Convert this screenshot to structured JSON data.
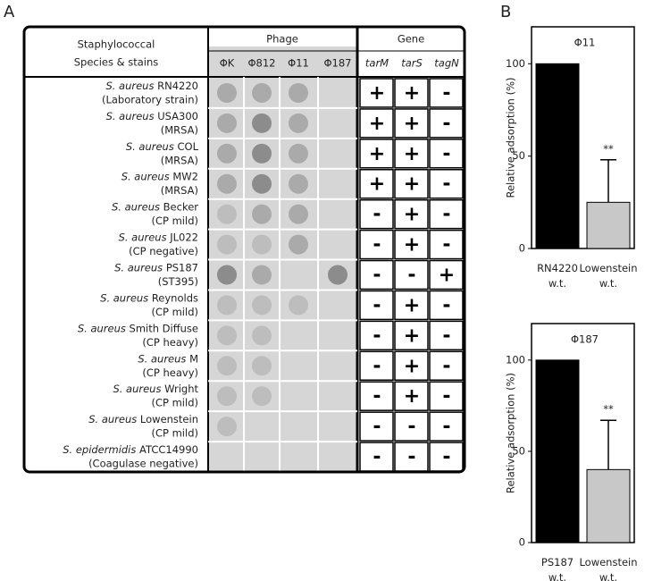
{
  "panel_a": {
    "label": "A",
    "header": {
      "strain_column": [
        "Staphylococcal",
        "Species & stains"
      ],
      "phage_group": "Phage",
      "phages": [
        "ΦK",
        "Φ812",
        "Φ11",
        "Φ187"
      ],
      "gene_group": "Gene",
      "genes": [
        "tarM",
        "tarS",
        "tagN"
      ]
    },
    "rows": [
      {
        "species": "S. aureus",
        "strain": "RN4220",
        "note": "(Laboratory strain)",
        "genes": [
          "+",
          "+",
          "-"
        ]
      },
      {
        "species": "S. aureus",
        "strain": "USA300",
        "note": "(MRSA)",
        "genes": [
          "+",
          "+",
          "-"
        ]
      },
      {
        "species": "S. aureus",
        "strain": "COL",
        "note": "(MRSA)",
        "genes": [
          "+",
          "+",
          "-"
        ]
      },
      {
        "species": "S. aureus",
        "strain": "MW2",
        "note": "(MRSA)",
        "genes": [
          "+",
          "+",
          "-"
        ]
      },
      {
        "species": "S. aureus",
        "strain": "Becker",
        "note": "(CP mild)",
        "genes": [
          "-",
          "+",
          "-"
        ]
      },
      {
        "species": "S. aureus",
        "strain": "JL022",
        "note": "(CP negative)",
        "genes": [
          "-",
          "+",
          "-"
        ]
      },
      {
        "species": "S. aureus",
        "strain": "PS187",
        "note": "(ST395)",
        "genes": [
          "-",
          "-",
          "+"
        ]
      },
      {
        "species": "S. aureus",
        "strain": "Reynolds",
        "note": "(CP mild)",
        "genes": [
          "-",
          "+",
          "-"
        ]
      },
      {
        "species": "S. aureus",
        "strain": "Smith Diffuse",
        "note": "(CP heavy)",
        "genes": [
          "-",
          "+",
          "-"
        ]
      },
      {
        "species": "S. aureus",
        "strain": "M",
        "note": "(CP heavy)",
        "genes": [
          "-",
          "+",
          "-"
        ]
      },
      {
        "species": "S. aureus",
        "strain": "Wright",
        "note": "(CP mild)",
        "genes": [
          "-",
          "+",
          "-"
        ]
      },
      {
        "species": "S. aureus",
        "strain": "Lowenstein",
        "note": "(CP mild)",
        "genes": [
          "-",
          "-",
          "-"
        ]
      },
      {
        "species": "S. epidermidis",
        "strain": "ATCC14990",
        "note": "(Coagulase negative)",
        "genes": [
          "-",
          "-",
          "-"
        ]
      }
    ]
  },
  "panel_b": {
    "label": "B"
  },
  "chart_data": [
    {
      "type": "bar",
      "title": "Φ11",
      "y_label": "Relative adsorption (%)",
      "categories": [
        "RN4220 w.t.",
        "Lowenstein w.t."
      ],
      "values": [
        100,
        25
      ],
      "errors": [
        0,
        23
      ],
      "colors": [
        "#000000",
        "#c8c8c8"
      ],
      "annotations": [
        null,
        "**"
      ],
      "ylim": [
        0,
        120
      ],
      "yticks": [
        0,
        50,
        100
      ]
    },
    {
      "type": "bar",
      "title": "Φ187",
      "y_label": "Relative adsorption (%)",
      "categories": [
        "PS187 w.t.",
        "Lowenstein w.t."
      ],
      "values": [
        100,
        40
      ],
      "errors": [
        0,
        27
      ],
      "colors": [
        "#000000",
        "#c8c8c8"
      ],
      "annotations": [
        null,
        "**"
      ],
      "ylim": [
        0,
        120
      ],
      "yticks": [
        0,
        50,
        100
      ]
    }
  ]
}
